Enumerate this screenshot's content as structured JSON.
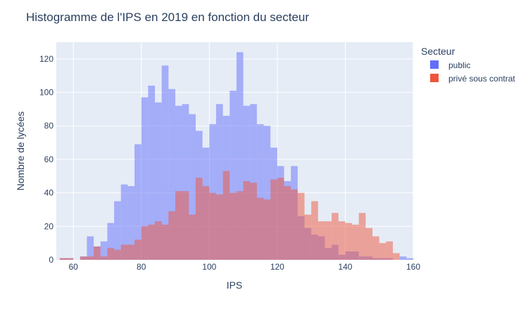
{
  "chart_data": {
    "type": "bar",
    "title": "Histogramme de l'IPS en 2019 en fonction du secteur",
    "xlabel": "IPS",
    "ylabel": "Nombre de lycées",
    "xlim": [
      55,
      160
    ],
    "ylim": [
      0,
      130
    ],
    "x_ticks": [
      60,
      80,
      100,
      120,
      140,
      160
    ],
    "y_ticks": [
      0,
      20,
      40,
      60,
      80,
      100,
      120
    ],
    "grid": true,
    "legend": {
      "title": "Secteur",
      "placement": "right"
    },
    "bin_width": 2,
    "series": [
      {
        "name": "public",
        "color": "#636efa",
        "bins": [
          [
            56,
            1
          ],
          [
            58,
            1
          ],
          [
            60,
            0
          ],
          [
            62,
            2
          ],
          [
            64,
            14
          ],
          [
            66,
            8
          ],
          [
            68,
            11
          ],
          [
            70,
            22
          ],
          [
            72,
            35
          ],
          [
            74,
            45
          ],
          [
            76,
            44
          ],
          [
            78,
            69
          ],
          [
            80,
            97
          ],
          [
            82,
            104
          ],
          [
            84,
            94
          ],
          [
            86,
            116
          ],
          [
            88,
            102
          ],
          [
            90,
            92
          ],
          [
            92,
            93
          ],
          [
            94,
            87
          ],
          [
            96,
            77
          ],
          [
            98,
            67
          ],
          [
            100,
            81
          ],
          [
            102,
            93
          ],
          [
            104,
            86
          ],
          [
            106,
            101
          ],
          [
            108,
            124
          ],
          [
            110,
            92
          ],
          [
            112,
            93
          ],
          [
            114,
            81
          ],
          [
            116,
            80
          ],
          [
            118,
            67
          ],
          [
            120,
            56
          ],
          [
            122,
            47
          ],
          [
            124,
            56
          ],
          [
            126,
            26
          ],
          [
            128,
            19
          ],
          [
            130,
            15
          ],
          [
            132,
            14
          ],
          [
            134,
            7
          ],
          [
            136,
            9
          ],
          [
            138,
            3
          ],
          [
            140,
            5
          ],
          [
            142,
            5
          ],
          [
            144,
            2
          ],
          [
            146,
            2
          ],
          [
            148,
            1
          ],
          [
            150,
            1
          ],
          [
            152,
            1
          ],
          [
            154,
            0
          ],
          [
            156,
            2
          ],
          [
            158,
            1
          ]
        ]
      },
      {
        "name": "privé sous contrat",
        "color": "#ef553b",
        "bins": [
          [
            56,
            1
          ],
          [
            58,
            1
          ],
          [
            62,
            2
          ],
          [
            64,
            2
          ],
          [
            66,
            8
          ],
          [
            68,
            2
          ],
          [
            70,
            7
          ],
          [
            72,
            6
          ],
          [
            74,
            9
          ],
          [
            76,
            9
          ],
          [
            78,
            12
          ],
          [
            80,
            20
          ],
          [
            82,
            21
          ],
          [
            84,
            23
          ],
          [
            86,
            21
          ],
          [
            88,
            29
          ],
          [
            90,
            41
          ],
          [
            92,
            41
          ],
          [
            94,
            27
          ],
          [
            96,
            49
          ],
          [
            98,
            44
          ],
          [
            100,
            40
          ],
          [
            102,
            39
          ],
          [
            104,
            53
          ],
          [
            106,
            40
          ],
          [
            108,
            41
          ],
          [
            110,
            47
          ],
          [
            112,
            46
          ],
          [
            114,
            37
          ],
          [
            116,
            36
          ],
          [
            118,
            48
          ],
          [
            120,
            49
          ],
          [
            122,
            44
          ],
          [
            124,
            42
          ],
          [
            126,
            40
          ],
          [
            128,
            27
          ],
          [
            130,
            35
          ],
          [
            132,
            23
          ],
          [
            134,
            23
          ],
          [
            136,
            28
          ],
          [
            138,
            23
          ],
          [
            140,
            22
          ],
          [
            142,
            21
          ],
          [
            144,
            28
          ],
          [
            146,
            19
          ],
          [
            148,
            14
          ],
          [
            150,
            10
          ],
          [
            152,
            11
          ],
          [
            154,
            4
          ]
        ]
      }
    ]
  }
}
